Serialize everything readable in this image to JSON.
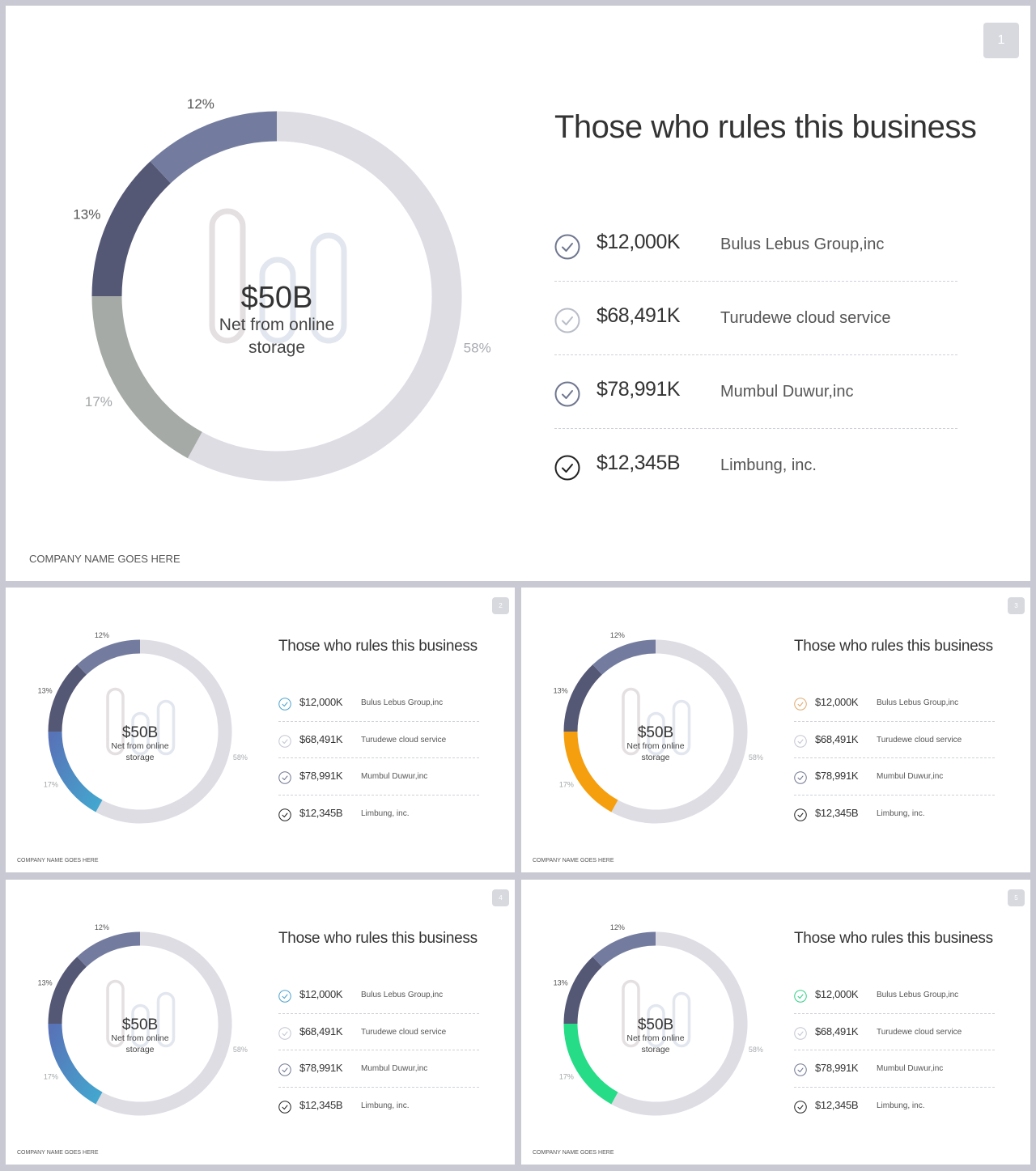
{
  "colors": {
    "ring_base": "#deddE3",
    "seg_12": "#737c9e",
    "seg_13": "#555875",
    "slides": [
      {
        "seg_17": "#a5aaa6",
        "check": "#6f7790"
      },
      {
        "seg_17": "#5873b8",
        "seg_17_end": "#43a7cf",
        "check": "#4ba3cf"
      },
      {
        "seg_17": "#f59f0f",
        "check": "#e0a96c"
      },
      {
        "seg_17": "#5873b8",
        "seg_17_end": "#43a7cf",
        "check": "#4ba3cf"
      },
      {
        "seg_17": "#26dc87",
        "check": "#2fcf86"
      }
    ]
  },
  "slides": [
    {
      "page": "1",
      "title": "Those who rules this business",
      "footer": "COMPANY NAME GOES HERE",
      "center_value": "$50B",
      "center_caption_1": "Net from  online",
      "center_caption_2": "storage",
      "list": [
        {
          "amount": "$12,000K",
          "company": "Bulus Lebus Group,inc"
        },
        {
          "amount": "$68,491K",
          "company": "Turudewe cloud service"
        },
        {
          "amount": "$78,991K",
          "company": "Mumbul Duwur,inc"
        },
        {
          "amount": "$12,345B",
          "company": "Limbung, inc."
        }
      ]
    },
    {
      "page": "2",
      "title": "Those who rules this business",
      "footer": "COMPANY NAME GOES HERE",
      "center_value": "$50B",
      "center_caption_1": "Net from  online",
      "center_caption_2": "storage",
      "list": [
        {
          "amount": "$12,000K",
          "company": "Bulus Lebus Group,inc"
        },
        {
          "amount": "$68,491K",
          "company": "Turudewe cloud service"
        },
        {
          "amount": "$78,991K",
          "company": "Mumbul Duwur,inc"
        },
        {
          "amount": "$12,345B",
          "company": "Limbung, inc."
        }
      ]
    },
    {
      "page": "3",
      "title": "Those who rules this business",
      "footer": "COMPANY NAME GOES HERE",
      "center_value": "$50B",
      "center_caption_1": "Net from  online",
      "center_caption_2": "storage",
      "list": [
        {
          "amount": "$12,000K",
          "company": "Bulus Lebus Group,inc"
        },
        {
          "amount": "$68,491K",
          "company": "Turudewe cloud service"
        },
        {
          "amount": "$78,991K",
          "company": "Mumbul Duwur,inc"
        },
        {
          "amount": "$12,345B",
          "company": "Limbung, inc."
        }
      ]
    },
    {
      "page": "4",
      "title": "Those who rules this business",
      "footer": "COMPANY NAME GOES HERE",
      "center_value": "$50B",
      "center_caption_1": "Net from  online",
      "center_caption_2": "storage",
      "list": [
        {
          "amount": "$12,000K",
          "company": "Bulus Lebus Group,inc"
        },
        {
          "amount": "$68,491K",
          "company": "Turudewe cloud service"
        },
        {
          "amount": "$78,991K",
          "company": "Mumbul Duwur,inc"
        },
        {
          "amount": "$12,345B",
          "company": "Limbung, inc."
        }
      ]
    },
    {
      "page": "5",
      "title": "Those who rules this business",
      "footer": "COMPANY NAME GOES HERE",
      "center_value": "$50B",
      "center_caption_1": "Net from  online",
      "center_caption_2": "storage",
      "list": [
        {
          "amount": "$12,000K",
          "company": "Bulus Lebus Group,inc"
        },
        {
          "amount": "$68,491K",
          "company": "Turudewe cloud service"
        },
        {
          "amount": "$78,991K",
          "company": "Mumbul Duwur,inc"
        },
        {
          "amount": "$12,345B",
          "company": "Limbung, inc."
        }
      ]
    }
  ],
  "chart_data": {
    "type": "pie",
    "categories": [
      "12%",
      "13%",
      "17%",
      "58%"
    ],
    "values": [
      12,
      13,
      17,
      58
    ],
    "title": "",
    "legend": "none"
  }
}
